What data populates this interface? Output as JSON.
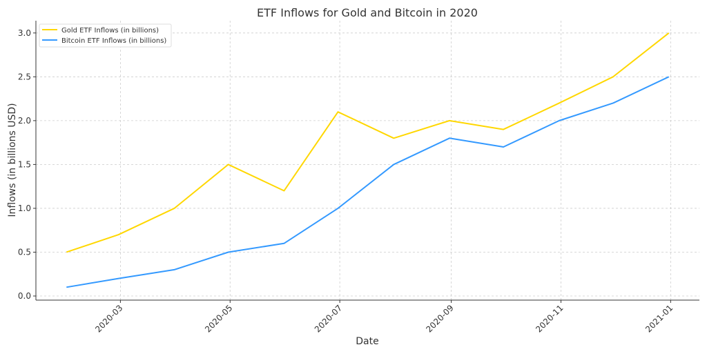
{
  "chart_data": {
    "type": "line",
    "title": "ETF Inflows for Gold and Bitcoin in 2020",
    "xlabel": "Date",
    "ylabel": "Inflows (in billions USD)",
    "x": [
      "2020-01-31",
      "2020-02-29",
      "2020-03-31",
      "2020-04-30",
      "2020-05-31",
      "2020-06-30",
      "2020-07-31",
      "2020-08-31",
      "2020-09-30",
      "2020-10-31",
      "2020-11-30",
      "2020-12-31"
    ],
    "series": [
      {
        "name": "Gold ETF Inflows (in billions)",
        "color": "#FFD700",
        "values": [
          0.5,
          0.7,
          1.0,
          1.5,
          1.2,
          2.1,
          1.8,
          2.0,
          1.9,
          2.2,
          2.5,
          3.0
        ]
      },
      {
        "name": "Bitcoin ETF Inflows (in billions)",
        "color": "#3399FF",
        "values": [
          0.1,
          0.2,
          0.3,
          0.5,
          0.6,
          1.0,
          1.5,
          1.8,
          1.7,
          2.0,
          2.2,
          2.5
        ]
      }
    ],
    "xlim": [
      "2020-01-14",
      "2021-01-17"
    ],
    "ylim": [
      -0.047,
      3.14
    ],
    "xticks": [
      "2020-03",
      "2020-05",
      "2020-07",
      "2020-09",
      "2020-11",
      "2021-01"
    ],
    "yticks": [
      "0.0",
      "0.5",
      "1.0",
      "1.5",
      "2.0",
      "2.5",
      "3.0"
    ],
    "grid": true,
    "legend": "top-left"
  }
}
